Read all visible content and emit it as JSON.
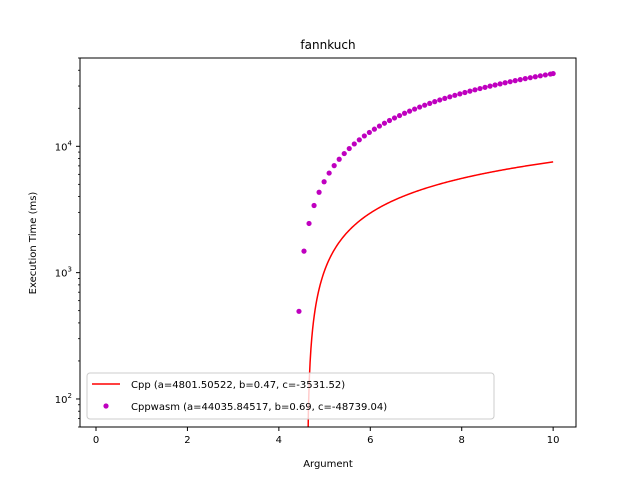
{
  "chart_data": {
    "type": "line",
    "title": "fannkuch",
    "xlabel": "Argument",
    "ylabel": "Execution Time (ms)",
    "xlim": [
      -0.35,
      10.5
    ],
    "ylim": [
      60,
      50000
    ],
    "yscale": "log",
    "grid": false,
    "legend_position": "lower-left",
    "x_ticks": [
      0,
      2,
      4,
      6,
      8,
      10
    ],
    "y_ticks": [
      {
        "value": 100,
        "base": "10",
        "exp": "2"
      },
      {
        "value": 1000,
        "base": "10",
        "exp": "3"
      },
      {
        "value": 10000,
        "base": "10",
        "exp": "4"
      }
    ],
    "series": [
      {
        "name": "Cpp (a=4801.50522, b=0.47, c=-3531.52)",
        "style": "line",
        "color": "#ff0000",
        "a": 4801.50522,
        "b": 0.47,
        "c": -3531.52,
        "x_range": [
          4.5,
          10
        ]
      },
      {
        "name": "Cppwasm (a=44035.84517, b=0.69, c=-48739.04)",
        "style": "markers",
        "color": "#bf00bf",
        "x": [
          4.44,
          4.55,
          4.66,
          4.77,
          4.88,
          4.99,
          5.1,
          5.21,
          5.32,
          5.43,
          5.54,
          5.65,
          5.76,
          5.87,
          5.98,
          6.09,
          6.2,
          6.31,
          6.42,
          6.53,
          6.64,
          6.75,
          6.86,
          6.97,
          7.08,
          7.19,
          7.3,
          7.41,
          7.52,
          7.63,
          7.74,
          7.85,
          7.96,
          8.07,
          8.18,
          8.29,
          8.4,
          8.51,
          8.62,
          8.73,
          8.84,
          8.95,
          9.06,
          9.17,
          9.28,
          9.39,
          9.5,
          9.61,
          9.72,
          9.83,
          9.94,
          10.0
        ],
        "y": [
          494,
          1480,
          2450,
          3400,
          4330,
          5240,
          6140,
          7030,
          7900,
          8760,
          9600,
          10440,
          11260,
          12080,
          12880,
          13670,
          14460,
          15230,
          16000,
          16760,
          17510,
          18260,
          18990,
          19720,
          20450,
          21160,
          21870,
          22570,
          23270,
          23960,
          24650,
          25330,
          26000,
          26670,
          27330,
          27990,
          28650,
          29290,
          29940,
          30580,
          31210,
          31840,
          32470,
          33090,
          33710,
          34320,
          34930,
          35530,
          36130,
          36730,
          37320,
          37640
        ]
      }
    ]
  }
}
